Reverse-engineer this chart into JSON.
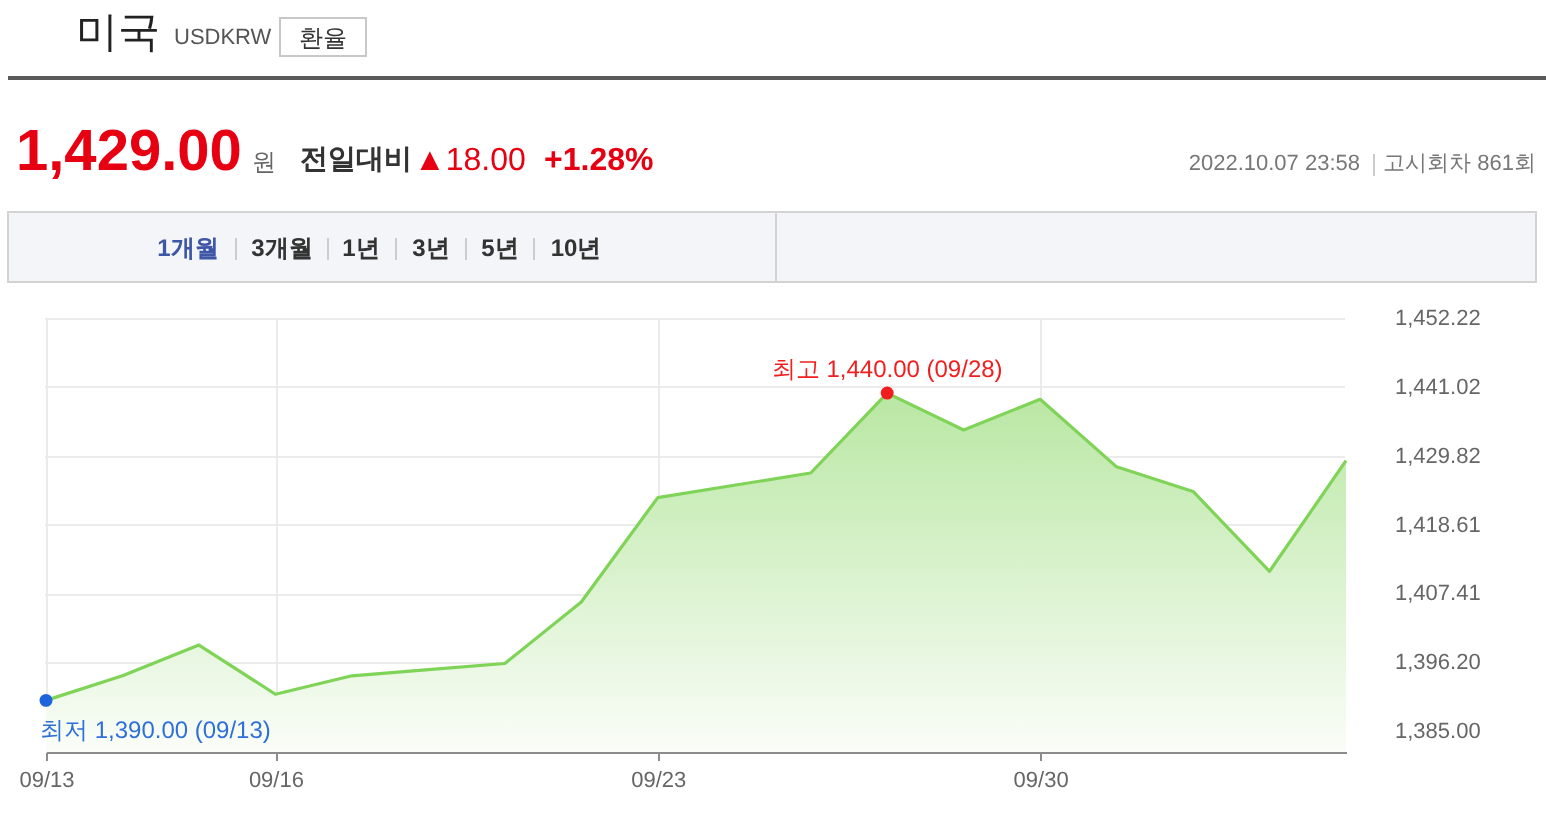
{
  "chart_data": {
    "type": "area",
    "title": "미국",
    "subtitle": "USDKRW",
    "categories": [
      "09/13",
      null,
      null,
      "09/16",
      null,
      null,
      null,
      null,
      "09/23",
      null,
      null,
      null,
      null,
      "09/30",
      null,
      null,
      null,
      null
    ],
    "series": [
      {
        "color": "#7fd458",
        "values": [
          1390.0,
          1394,
          1399,
          1391,
          1394,
          1395,
          1396,
          1406,
          1423,
          1425,
          1427,
          1440.0,
          1434,
          1439,
          1428,
          1424,
          1411.0,
          1429.0
        ]
      },
      {
        "type": "scatter",
        "color": "#f01e1e",
        "values": [
          null,
          null,
          null,
          null,
          null,
          null,
          null,
          null,
          null,
          null,
          null,
          1440.0,
          null,
          null,
          null,
          null,
          null,
          null
        ]
      },
      {
        "type": "scatter",
        "color": "#1e64dc",
        "values": [
          1390.0,
          null,
          null,
          null,
          null,
          null,
          null,
          null,
          null,
          null,
          null,
          null,
          null,
          null,
          null,
          null,
          null,
          null
        ]
      }
    ],
    "ylim": [
      1381.6,
      1452.22
    ],
    "yticks": [
      {
        "value": 1385.0,
        "label": "1,385.00"
      },
      {
        "value": 1396.2,
        "label": "1,396.20"
      },
      {
        "value": 1407.41,
        "label": "1,407.41"
      },
      {
        "value": 1418.61,
        "label": "1,418.61"
      },
      {
        "value": 1429.82,
        "label": "1,429.82"
      },
      {
        "value": 1441.02,
        "label": "1,441.02"
      },
      {
        "value": 1452.22,
        "label": "1,452.22"
      }
    ],
    "grid": true,
    "annotations": [
      "환율",
      "1,429.00",
      "원",
      "전일대비",
      "▲18.00",
      "+1.28%",
      "2022.10.07 23:58",
      "고시회차 861회",
      "1개월",
      "3개월",
      "1년",
      "3년",
      "5년",
      "10년",
      {
        "text": "최고 1,440.00 (09/28)",
        "y": 1440.0
      },
      "최저 1,390.00 (09/13)"
    ]
  }
}
